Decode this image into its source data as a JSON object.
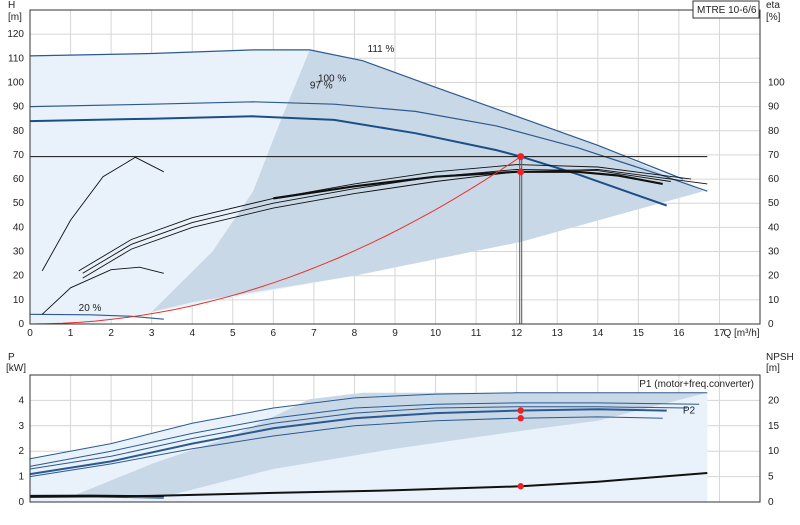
{
  "chart_data": [
    {
      "type": "line",
      "id": "pump-curve",
      "title": "MTRE 10-6/6",
      "y_left": {
        "label": "H",
        "unit": "[m]",
        "lim": [
          0,
          130
        ],
        "ticks": [
          0,
          10,
          20,
          30,
          40,
          50,
          60,
          70,
          80,
          90,
          100,
          110,
          120
        ]
      },
      "y_right": {
        "label": "eta",
        "unit": "[%]",
        "lim": [
          0,
          130
        ],
        "ticks": [
          0,
          10,
          20,
          30,
          40,
          50,
          60,
          70,
          80,
          90,
          100
        ]
      },
      "x": {
        "label": "Q",
        "unit": "[m³/h]",
        "lim": [
          0,
          18
        ],
        "ticks": [
          0,
          1,
          2,
          3,
          4,
          5,
          6,
          7,
          8,
          9,
          10,
          11,
          12,
          13,
          14,
          15,
          16,
          17
        ]
      },
      "head_curves": [
        {
          "name": "111 %",
          "points": [
            [
              0,
              111
            ],
            [
              3,
              112
            ],
            [
              5.5,
              113.5
            ],
            [
              6.9,
              113.5
            ],
            [
              8.2,
              109
            ],
            [
              10,
              98
            ],
            [
              12,
              86
            ],
            [
              14,
              74
            ],
            [
              16.1,
              60
            ]
          ]
        },
        {
          "name": "100 %",
          "points": [
            [
              0,
              90
            ],
            [
              3,
              91
            ],
            [
              5.5,
              92
            ],
            [
              7.5,
              91
            ],
            [
              9.5,
              88
            ],
            [
              11.5,
              82
            ],
            [
              13.5,
              73
            ],
            [
              15.5,
              62
            ],
            [
              16.7,
              55
            ]
          ]
        },
        {
          "name": "97 %",
          "points": [
            [
              0,
              84
            ],
            [
              3,
              85
            ],
            [
              5.5,
              86
            ],
            [
              7.5,
              84.5
            ],
            [
              9.5,
              79
            ],
            [
              11.5,
              72
            ],
            [
              12.1,
              69.3
            ],
            [
              13.5,
              62
            ],
            [
              15.7,
              49
            ]
          ]
        },
        {
          "name": "20 %",
          "points": [
            [
              0,
              4
            ],
            [
              1.5,
              3.8
            ],
            [
              2.5,
              3.2
            ],
            [
              3.3,
              2
            ]
          ]
        }
      ],
      "efficiency_curves": [
        {
          "points": [
            [
              6,
              52
            ],
            [
              8,
              57
            ],
            [
              10,
              61
            ],
            [
              12,
              63
            ],
            [
              13.5,
              63
            ],
            [
              14.5,
              61.5
            ],
            [
              15.6,
              58
            ]
          ],
          "bold": true
        },
        {
          "points": [
            [
              1.3,
              21
            ],
            [
              2.5,
              33
            ],
            [
              4,
              42
            ],
            [
              6,
              50
            ],
            [
              8,
              56
            ],
            [
              10,
              61
            ],
            [
              12,
              64
            ],
            [
              14,
              63.5
            ],
            [
              15.8,
              59
            ]
          ],
          "bold": false
        },
        {
          "points": [
            [
              1.3,
              19
            ],
            [
              2.5,
              31
            ],
            [
              4,
              40
            ],
            [
              6,
              48
            ],
            [
              8,
              54
            ],
            [
              10,
              59
            ],
            [
              12,
              63
            ],
            [
              14,
              64
            ],
            [
              16.7,
              58
            ]
          ],
          "bold": false
        },
        {
          "points": [
            [
              1.2,
              22
            ],
            [
              2.5,
              35
            ],
            [
              4,
              44
            ],
            [
              6,
              52
            ],
            [
              8,
              58
            ],
            [
              10,
              63
            ],
            [
              12,
              66
            ],
            [
              14,
              65
            ],
            [
              16.3,
              60
            ]
          ],
          "bold": false
        },
        {
          "points": [
            [
              0.3,
              22
            ],
            [
              1,
              43
            ],
            [
              1.8,
              61
            ],
            [
              2.6,
              69
            ],
            [
              3.3,
              63
            ]
          ],
          "bold": false
        },
        {
          "points": [
            [
              0.3,
              4
            ],
            [
              1,
              15
            ],
            [
              2,
              22.5
            ],
            [
              2.7,
              23.5
            ],
            [
              3.3,
              21
            ]
          ],
          "bold": false
        }
      ],
      "duty_point": {
        "Q": 12.1,
        "H": 69.3,
        "eta": 63
      },
      "system_curve": {
        "H0": 0,
        "through": [
          12.1,
          69.3
        ]
      },
      "duty_head_line": 69.3
    },
    {
      "type": "line",
      "id": "power-npsh",
      "y_left": {
        "label": "P",
        "unit": "[kW]",
        "lim": [
          0,
          5
        ],
        "ticks": [
          0,
          1,
          2,
          3,
          4
        ]
      },
      "y_right": {
        "label": "NPSH",
        "unit": "[m]",
        "lim": [
          0,
          25
        ],
        "ticks": [
          0,
          5,
          10,
          15,
          20
        ]
      },
      "x": {
        "lim": [
          0,
          18
        ]
      },
      "power_curves": [
        {
          "name": "P1 (motor+freq.converter)",
          "points": [
            [
              0,
              1.7
            ],
            [
              2,
              2.3
            ],
            [
              4,
              3.1
            ],
            [
              6,
              3.7
            ],
            [
              8,
              4.1
            ],
            [
              10,
              4.25
            ],
            [
              12,
              4.3
            ],
            [
              14,
              4.3
            ],
            [
              16.7,
              4.3
            ]
          ]
        },
        {
          "name": "P2",
          "points": [
            [
              0,
              1.1
            ],
            [
              2,
              1.6
            ],
            [
              4,
              2.3
            ],
            [
              6,
              2.9
            ],
            [
              8,
              3.3
            ],
            [
              10,
              3.5
            ],
            [
              12,
              3.6
            ],
            [
              14,
              3.65
            ],
            [
              15.7,
              3.6
            ]
          ]
        },
        {
          "points": [
            [
              0,
              1.3
            ],
            [
              2,
              1.8
            ],
            [
              4,
              2.5
            ],
            [
              6,
              3.1
            ],
            [
              8,
              3.5
            ],
            [
              10,
              3.7
            ],
            [
              12,
              3.75
            ],
            [
              14,
              3.75
            ],
            [
              16.2,
              3.7
            ]
          ]
        },
        {
          "points": [
            [
              0,
              1.4
            ],
            [
              2,
              2.0
            ],
            [
              4,
              2.7
            ],
            [
              6,
              3.3
            ],
            [
              8,
              3.7
            ],
            [
              10,
              3.85
            ],
            [
              12,
              3.9
            ],
            [
              14,
              3.9
            ],
            [
              16.5,
              3.85
            ]
          ]
        },
        {
          "points": [
            [
              0,
              1.0
            ],
            [
              2,
              1.5
            ],
            [
              4,
              2.1
            ],
            [
              6,
              2.6
            ],
            [
              8,
              3.0
            ],
            [
              10,
              3.2
            ],
            [
              12,
              3.3
            ],
            [
              14,
              3.35
            ],
            [
              15.6,
              3.3
            ]
          ]
        }
      ],
      "npsh_curve": {
        "points": [
          [
            0,
            1
          ],
          [
            3,
            1.2
          ],
          [
            6,
            1.8
          ],
          [
            9,
            2.3
          ],
          [
            12.1,
            3.1
          ],
          [
            14,
            4
          ],
          [
            16.7,
            5.7
          ]
        ]
      },
      "duty_points": [
        {
          "Q": 12.1,
          "P": 3.6
        },
        {
          "Q": 12.1,
          "P": 3.3
        },
        {
          "Q": 12.1,
          "NPSH": 3.1
        }
      ]
    }
  ]
}
